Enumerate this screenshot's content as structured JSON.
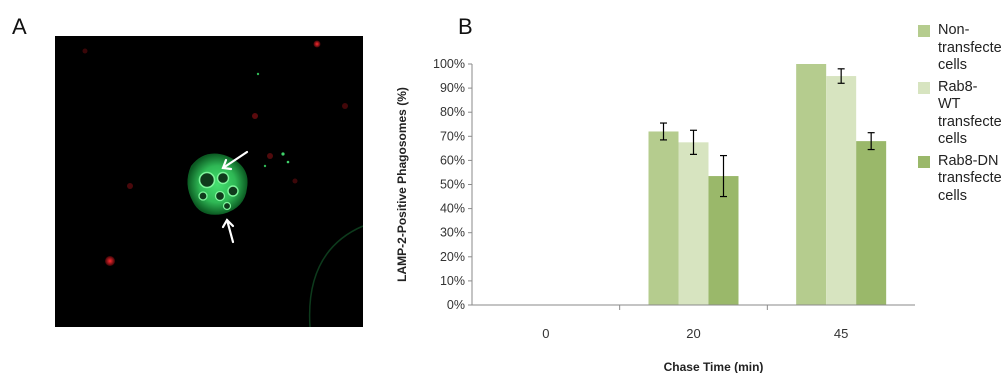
{
  "panels": {
    "a_label": "A",
    "b_label": "B"
  },
  "colors": {
    "micro_background": "#000000",
    "cell_green": "#3fd26a",
    "puncta_red": "#c0141c",
    "arrow": "#ffffff"
  },
  "chart_data": {
    "type": "bar",
    "title": "",
    "xlabel": "Chase Time (min)",
    "ylabel": "LAMP-2-Positive Phagosomes (%)",
    "ylim": [
      0,
      100
    ],
    "ytick_step": 10,
    "y_format": "percent",
    "categories": [
      "0",
      "20",
      "45"
    ],
    "series": [
      {
        "name": "Non-transfected cells",
        "color": "#b5cc8e",
        "values": [
          0,
          72,
          100
        ],
        "errors": [
          0,
          3.5,
          0
        ]
      },
      {
        "name": "Rab8-WT transfected cells",
        "color": "#d7e4c0",
        "values": [
          0,
          67.5,
          95
        ],
        "errors": [
          0,
          5,
          3
        ]
      },
      {
        "name": "Rab8-DN transfected cells",
        "color": "#9ab86a",
        "values": [
          0,
          53.5,
          68
        ],
        "errors": [
          0,
          8.5,
          3.5
        ]
      }
    ],
    "legend": {
      "position": "right",
      "entries": [
        {
          "lines": [
            "Non-",
            "transfected",
            "cells"
          ]
        },
        {
          "lines": [
            "Rab8-WT",
            "transfected",
            "cells"
          ]
        },
        {
          "lines": [
            "Rab8-DN",
            "transfected",
            "cells"
          ]
        }
      ]
    },
    "grid": false
  }
}
